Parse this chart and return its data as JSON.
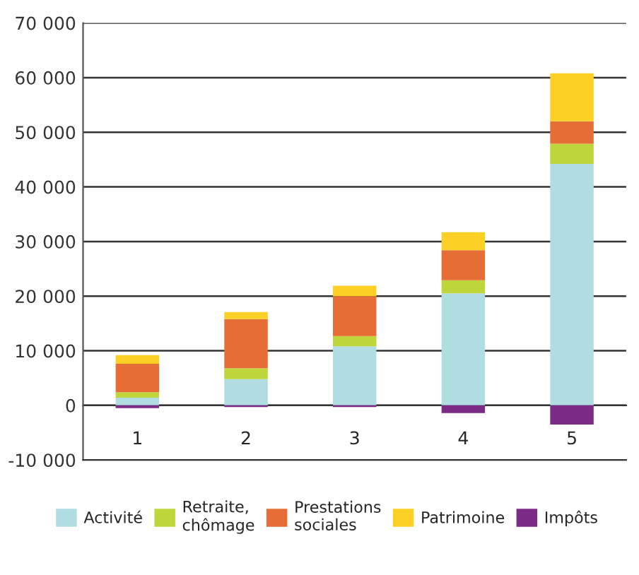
{
  "chart_data": {
    "type": "bar",
    "stacked": true,
    "categories": [
      "1",
      "2",
      "3",
      "4",
      "5"
    ],
    "series": [
      {
        "name": "Activité",
        "color": "#b0dde2",
        "values": [
          1400,
          4800,
          10800,
          20500,
          44200
        ]
      },
      {
        "name": "Retraite,\nchômage",
        "color": "#bed63a",
        "values": [
          1000,
          2000,
          1900,
          2400,
          3700
        ]
      },
      {
        "name": "Prestations\nsociales",
        "color": "#e66d35",
        "values": [
          5200,
          9000,
          7300,
          5500,
          4100
        ]
      },
      {
        "name": "Patrimoine",
        "color": "#fcd025",
        "values": [
          1600,
          1300,
          1900,
          3300,
          8800
        ]
      },
      {
        "name": "Impôts",
        "color": "#7b2a86",
        "values": [
          -500,
          -300,
          -300,
          -1400,
          -3500
        ]
      }
    ],
    "ylim": [
      -10000,
      70000
    ],
    "yticks": [
      {
        "value": -10000,
        "label": "-10 000"
      },
      {
        "value": 0,
        "label": "0"
      },
      {
        "value": 10000,
        "label": "10 000"
      },
      {
        "value": 20000,
        "label": "20 000"
      },
      {
        "value": 30000,
        "label": "30 000"
      },
      {
        "value": 40000,
        "label": "40 000"
      },
      {
        "value": 50000,
        "label": "50 000"
      },
      {
        "value": 60000,
        "label": "60 000"
      },
      {
        "value": 70000,
        "label": "70 000"
      }
    ],
    "grid": "y",
    "legend": "bottom"
  }
}
